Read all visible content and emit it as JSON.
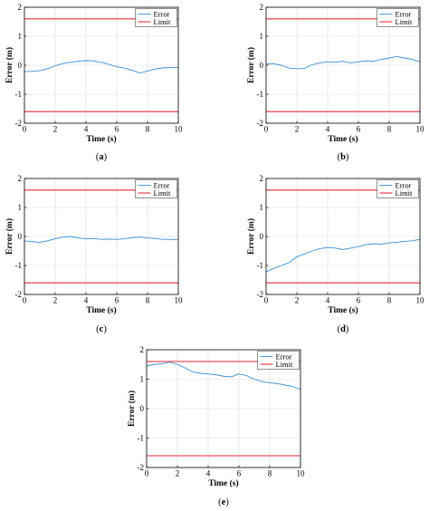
{
  "colors": {
    "error": "#3a8fd0",
    "limit": "#e8505a",
    "grid": "#dcdcdc",
    "axis": "#000000"
  },
  "chart_data": [
    {
      "type": "line",
      "caption_letter": "a",
      "xlabel": "Time (s)",
      "ylabel": "Error (m)",
      "xlim": [
        0,
        10
      ],
      "ylim": [
        -2,
        2
      ],
      "xticks": [
        0,
        2,
        4,
        6,
        8,
        10
      ],
      "yticks": [
        -2,
        -1,
        0,
        1,
        2
      ],
      "grid": true,
      "legend_position": "top-right",
      "series": [
        {
          "name": "Error",
          "x": [
            0,
            0.5,
            1,
            1.5,
            2,
            2.5,
            3,
            3.5,
            4,
            4.5,
            5,
            5.5,
            6,
            6.5,
            7,
            7.5,
            8,
            8.5,
            9,
            9.5,
            10
          ],
          "y": [
            -0.22,
            -0.21,
            -0.19,
            -0.12,
            -0.02,
            0.06,
            0.1,
            0.14,
            0.16,
            0.15,
            0.1,
            0.03,
            -0.05,
            -0.1,
            -0.17,
            -0.27,
            -0.2,
            -0.13,
            -0.09,
            -0.08,
            -0.07
          ]
        },
        {
          "name": "Limit",
          "x": [
            0,
            10
          ],
          "y": [
            1.6,
            1.6
          ]
        },
        {
          "name": "",
          "x": [
            0,
            10
          ],
          "y": [
            -1.6,
            -1.6
          ]
        }
      ]
    },
    {
      "type": "line",
      "caption_letter": "b",
      "xlabel": "Time (s)",
      "ylabel": "Error (m)",
      "xlim": [
        0,
        10
      ],
      "ylim": [
        -2,
        2
      ],
      "xticks": [
        0,
        2,
        4,
        6,
        8,
        10
      ],
      "yticks": [
        -2,
        -1,
        0,
        1,
        2
      ],
      "grid": true,
      "legend_position": "top-right",
      "series": [
        {
          "name": "Error",
          "x": [
            0,
            0.5,
            1,
            1.5,
            2,
            2.5,
            3,
            3.5,
            4,
            4.5,
            5,
            5.5,
            6,
            6.5,
            7,
            7.5,
            8,
            8.5,
            9,
            9.5,
            10
          ],
          "y": [
            0.04,
            0.05,
            0.0,
            -0.1,
            -0.12,
            -0.11,
            0.02,
            0.08,
            0.12,
            0.1,
            0.14,
            0.08,
            0.12,
            0.15,
            0.14,
            0.2,
            0.25,
            0.3,
            0.25,
            0.2,
            0.12
          ]
        },
        {
          "name": "Limit",
          "x": [
            0,
            10
          ],
          "y": [
            1.6,
            1.6
          ]
        },
        {
          "name": "",
          "x": [
            0,
            10
          ],
          "y": [
            -1.6,
            -1.6
          ]
        }
      ]
    },
    {
      "type": "line",
      "caption_letter": "c",
      "xlabel": "Time (s)",
      "ylabel": "Error (m)",
      "xlim": [
        0,
        10
      ],
      "ylim": [
        -2,
        2
      ],
      "xticks": [
        0,
        2,
        4,
        6,
        8,
        10
      ],
      "yticks": [
        -2,
        -1,
        0,
        1,
        2
      ],
      "grid": true,
      "legend_position": "top-right",
      "series": [
        {
          "name": "Error",
          "x": [
            0,
            0.5,
            1,
            1.5,
            2,
            2.5,
            3,
            3.5,
            4,
            4.5,
            5,
            5.5,
            6,
            6.5,
            7,
            7.5,
            8,
            8.5,
            9,
            9.5,
            10
          ],
          "y": [
            -0.15,
            -0.18,
            -0.2,
            -0.15,
            -0.08,
            -0.02,
            0.0,
            -0.05,
            -0.08,
            -0.07,
            -0.1,
            -0.09,
            -0.1,
            -0.08,
            -0.04,
            -0.02,
            -0.05,
            -0.07,
            -0.1,
            -0.1,
            -0.12
          ]
        },
        {
          "name": "Limit",
          "x": [
            0,
            10
          ],
          "y": [
            1.6,
            1.6
          ]
        },
        {
          "name": "",
          "x": [
            0,
            10
          ],
          "y": [
            -1.6,
            -1.6
          ]
        }
      ]
    },
    {
      "type": "line",
      "caption_letter": "d",
      "xlabel": "Time (s)",
      "ylabel": "Error (m)",
      "xlim": [
        0,
        10
      ],
      "ylim": [
        -2,
        2
      ],
      "xticks": [
        0,
        2,
        4,
        6,
        8,
        10
      ],
      "yticks": [
        -2,
        -1,
        0,
        1,
        2
      ],
      "grid": true,
      "legend_position": "top-right",
      "series": [
        {
          "name": "Error",
          "x": [
            0,
            0.5,
            1,
            1.5,
            2,
            2.5,
            3,
            3.5,
            4,
            4.5,
            5,
            5.5,
            6,
            6.5,
            7,
            7.5,
            8,
            8.5,
            9,
            9.5,
            10
          ],
          "y": [
            -1.22,
            -1.1,
            -1.0,
            -0.9,
            -0.7,
            -0.6,
            -0.5,
            -0.42,
            -0.38,
            -0.4,
            -0.45,
            -0.4,
            -0.35,
            -0.28,
            -0.25,
            -0.27,
            -0.22,
            -0.2,
            -0.17,
            -0.15,
            -0.1
          ]
        },
        {
          "name": "Limit",
          "x": [
            0,
            10
          ],
          "y": [
            1.6,
            1.6
          ]
        },
        {
          "name": "",
          "x": [
            0,
            10
          ],
          "y": [
            -1.6,
            -1.6
          ]
        }
      ]
    },
    {
      "type": "line",
      "caption_letter": "e",
      "xlabel": "Time (s)",
      "ylabel": "Error (m)",
      "xlim": [
        0,
        10
      ],
      "ylim": [
        -2,
        2
      ],
      "xticks": [
        0,
        2,
        4,
        6,
        8,
        10
      ],
      "yticks": [
        -2,
        -1,
        0,
        1,
        2
      ],
      "grid": true,
      "legend_position": "top-right",
      "series": [
        {
          "name": "Error",
          "x": [
            0,
            0.5,
            1,
            1.5,
            2,
            2.5,
            3,
            3.5,
            4,
            4.5,
            5,
            5.5,
            6,
            6.5,
            7,
            7.5,
            8,
            8.5,
            9,
            9.5,
            10
          ],
          "y": [
            1.45,
            1.5,
            1.52,
            1.58,
            1.5,
            1.38,
            1.25,
            1.2,
            1.18,
            1.15,
            1.1,
            1.08,
            1.18,
            1.12,
            1.0,
            0.92,
            0.88,
            0.85,
            0.8,
            0.75,
            0.65
          ]
        },
        {
          "name": "Limit",
          "x": [
            0,
            10
          ],
          "y": [
            1.6,
            1.6
          ]
        },
        {
          "name": "",
          "x": [
            0,
            10
          ],
          "y": [
            -1.6,
            -1.6
          ]
        }
      ]
    }
  ]
}
